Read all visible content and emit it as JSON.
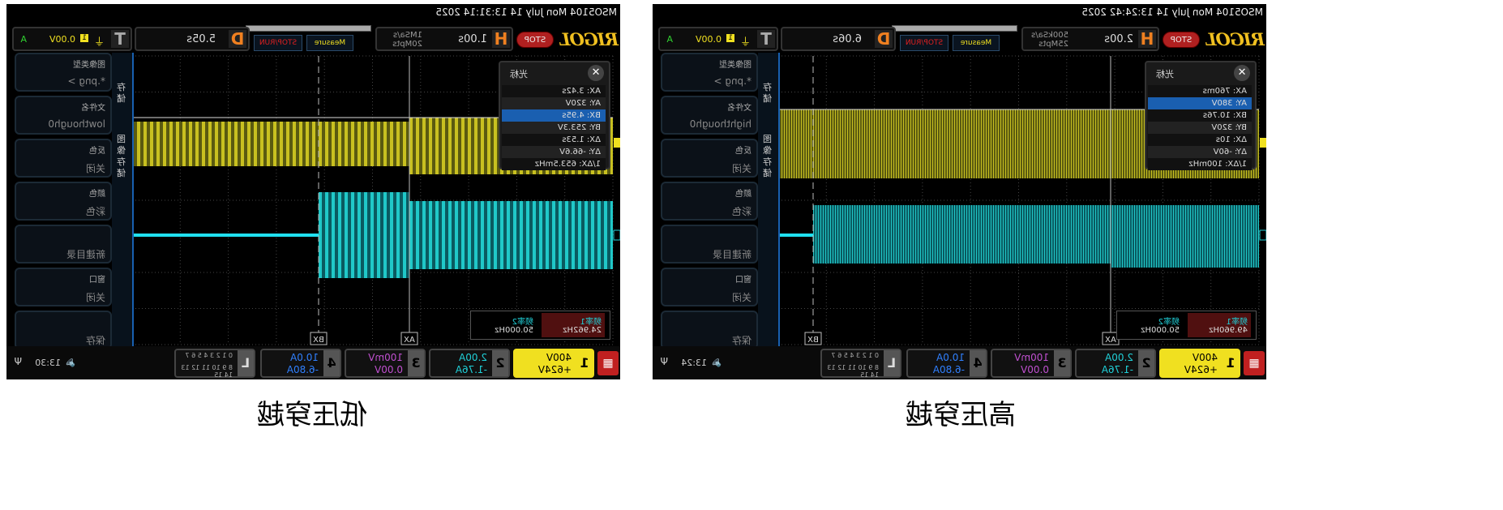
{
  "screens": [
    {
      "status": "MSO5104 Mon July 14 13:31:14 2025",
      "logo": "RIGOL",
      "run_state": "STOP",
      "horizontal": {
        "label": "H",
        "timebase": "1.00s",
        "sample_rate": "1MSa/s",
        "memory": "20Mpts"
      },
      "measure_label": "Measure",
      "stoprun_label": "STOP/RUN",
      "delay": {
        "label": "D",
        "value": "5.05s"
      },
      "trigger": {
        "label": "T",
        "source": "1",
        "level": "0.00V",
        "mode": "A"
      },
      "menu_tabs": [
        "存储",
        "图像存储"
      ],
      "menu": [
        {
          "title": "图像类型",
          "value": "*.png >"
        },
        {
          "title": "文件名",
          "value": "lowthough0"
        },
        {
          "title": "反色",
          "value": "关闭"
        },
        {
          "title": "颜色",
          "value": "彩色"
        },
        {
          "title": "",
          "value": "新建目录"
        },
        {
          "title": "窗口",
          "value": "关闭"
        },
        {
          "title": "",
          "value": "保存"
        }
      ],
      "cursor": {
        "title": "光标",
        "rows": [
          "AX:    3.42s",
          "AY:    320V",
          "BX:    4.95s",
          "BY:    253.3V",
          "ΔX:    1.53s",
          "ΔY:    -66.6V",
          "1/ΔX: 653.5mHz"
        ],
        "selected": 2,
        "ax_label": "AX",
        "bx_label": "BX"
      },
      "measurements": [
        {
          "name": "频率1",
          "value": "24.962Hz"
        },
        {
          "name": "频率2",
          "value": "50.000Hz"
        }
      ],
      "channels": [
        {
          "n": "1",
          "scale": "400V",
          "offset": "+624V",
          "color": "#f0e020"
        },
        {
          "n": "2",
          "scale": "2.00A",
          "offset": "-1.76A",
          "color": "#20d0d8"
        },
        {
          "n": "3",
          "scale": "100mV",
          "offset": "0.00V",
          "color": "#c050d0"
        },
        {
          "n": "4",
          "scale": "10.0A",
          "offset": "-6.80A",
          "color": "#3080ff"
        }
      ],
      "logic": {
        "label": "L",
        "row1": "0 1 2 3  4 5 6 7",
        "row2": "8 9 10 11 12 13 14 15"
      },
      "time": "13:30",
      "caption": "低压穿越"
    },
    {
      "status": "MSO5104 Mon July 14 13:24:42 2025",
      "logo": "RIGOL",
      "run_state": "STOP",
      "horizontal": {
        "label": "H",
        "timebase": "2.00s",
        "sample_rate": "500kSa/s",
        "memory": "25Mpts"
      },
      "measure_label": "Measure",
      "stoprun_label": "STOP/RUN",
      "delay": {
        "label": "D",
        "value": "6.06s"
      },
      "trigger": {
        "label": "T",
        "source": "1",
        "level": "0.00V",
        "mode": "A"
      },
      "menu_tabs": [
        "存储",
        "图像存储"
      ],
      "menu": [
        {
          "title": "图像类型",
          "value": "*.png >"
        },
        {
          "title": "文件名",
          "value": "highthough0"
        },
        {
          "title": "反色",
          "value": "关闭"
        },
        {
          "title": "颜色",
          "value": "彩色"
        },
        {
          "title": "",
          "value": "新建目录"
        },
        {
          "title": "窗口",
          "value": "关闭"
        },
        {
          "title": "",
          "value": "保存"
        }
      ],
      "cursor": {
        "title": "光标",
        "rows": [
          "AX:    760ms",
          "AY:    380V",
          "BX:    10.76s",
          "BY:    320V",
          "ΔX:    10s",
          "ΔY:    -60V",
          "1/ΔX: 100mHz"
        ],
        "selected": 1,
        "ax_label": "AX",
        "bx_label": "BX"
      },
      "measurements": [
        {
          "name": "频率1",
          "value": "49.960Hz"
        },
        {
          "name": "频率2",
          "value": "50.000Hz"
        }
      ],
      "channels": [
        {
          "n": "1",
          "scale": "400V",
          "offset": "+624V",
          "color": "#f0e020"
        },
        {
          "n": "2",
          "scale": "2.00A",
          "offset": "-1.76A",
          "color": "#20d0d8"
        },
        {
          "n": "3",
          "scale": "100mV",
          "offset": "0.00V",
          "color": "#c050d0"
        },
        {
          "n": "4",
          "scale": "10.0A",
          "offset": "-6.80A",
          "color": "#3080ff"
        }
      ],
      "logic": {
        "label": "L",
        "row1": "0 1 2 3  4 5 6 7",
        "row2": "8 9 10 11 12 13 14 15"
      },
      "time": "13:24",
      "caption": "高压穿越"
    }
  ]
}
